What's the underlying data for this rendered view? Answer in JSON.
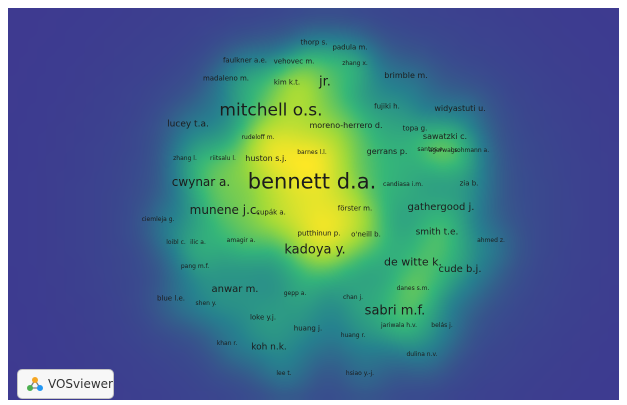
{
  "app": {
    "name": "VOSviewer"
  },
  "map": {
    "view": "density",
    "colors": {
      "background": "#3e3990",
      "low": "#3e3990",
      "mid": "#21918c",
      "high": "#fde725",
      "label": "#1c1c1c"
    },
    "items": [
      {
        "label": "thorp s.",
        "size": 7
      },
      {
        "label": "padula m.",
        "size": 7
      },
      {
        "label": "faulkner a.e.",
        "size": 7
      },
      {
        "label": "vehovec m.",
        "size": 7
      },
      {
        "label": "zhang x.",
        "size": 6
      },
      {
        "label": "brimble m.",
        "size": 8
      },
      {
        "label": "madaleno m.",
        "size": 7
      },
      {
        "label": "kim k.t.",
        "size": 7
      },
      {
        "label": "jr.",
        "size": 13
      },
      {
        "label": "fujiki h.",
        "size": 7
      },
      {
        "label": "widyastuti u.",
        "size": 8
      },
      {
        "label": "mitchell o.s.",
        "size": 17
      },
      {
        "label": "lucey t.a.",
        "size": 9
      },
      {
        "label": "moreno-herrero d.",
        "size": 8
      },
      {
        "label": "topa g.",
        "size": 7
      },
      {
        "label": "sawatzki c.",
        "size": 8
      },
      {
        "label": "rudeloff m.",
        "size": 6
      },
      {
        "label": "agarwal s.",
        "size": 6
      },
      {
        "label": "barnes l.l.",
        "size": 6
      },
      {
        "label": "gerrans p.",
        "size": 8
      },
      {
        "label": "santos e.",
        "size": 6
      },
      {
        "label": "grohmann a.",
        "size": 6
      },
      {
        "label": "zhang l.",
        "size": 6
      },
      {
        "label": "riitsalu l.",
        "size": 6
      },
      {
        "label": "huston s.j.",
        "size": 8
      },
      {
        "label": "cwynar a.",
        "size": 12
      },
      {
        "label": "bennett d.a.",
        "size": 21
      },
      {
        "label": "candiasa i.m.",
        "size": 6
      },
      {
        "label": "zia b.",
        "size": 7
      },
      {
        "label": "förster m.",
        "size": 7
      },
      {
        "label": "gathergood j.",
        "size": 10
      },
      {
        "label": "munene j.c.",
        "size": 12
      },
      {
        "label": "cupák a.",
        "size": 7
      },
      {
        "label": "ciemleja g.",
        "size": 6
      },
      {
        "label": "smith t.e.",
        "size": 9
      },
      {
        "label": "putthinun p.",
        "size": 7
      },
      {
        "label": "o'neill b.",
        "size": 7
      },
      {
        "label": "loibl c.",
        "size": 6
      },
      {
        "label": "ilic a.",
        "size": 6
      },
      {
        "label": "amagir a.",
        "size": 6
      },
      {
        "label": "ahmed z.",
        "size": 6
      },
      {
        "label": "kadoya y.",
        "size": 13
      },
      {
        "label": "de witte k.",
        "size": 11
      },
      {
        "label": "pang m.f.",
        "size": 6
      },
      {
        "label": "cude b.j.",
        "size": 10
      },
      {
        "label": "danes s.m.",
        "size": 6
      },
      {
        "label": "anwar m.",
        "size": 10
      },
      {
        "label": "gepp a.",
        "size": 6
      },
      {
        "label": "chan j.",
        "size": 6
      },
      {
        "label": "blue l.e.",
        "size": 7
      },
      {
        "label": "shen y.",
        "size": 6
      },
      {
        "label": "sabri m.f.",
        "size": 13
      },
      {
        "label": "loke y.j.",
        "size": 7
      },
      {
        "label": "jariwala h.v.",
        "size": 6
      },
      {
        "label": "belás j.",
        "size": 6
      },
      {
        "label": "huang j.",
        "size": 7
      },
      {
        "label": "huang r.",
        "size": 6
      },
      {
        "label": "khan r.",
        "size": 6
      },
      {
        "label": "koh n.k.",
        "size": 9
      },
      {
        "label": "dulina n.v.",
        "size": 6
      },
      {
        "label": "lee t.",
        "size": 6
      },
      {
        "label": "hsiao y.-j.",
        "size": 6
      }
    ]
  }
}
